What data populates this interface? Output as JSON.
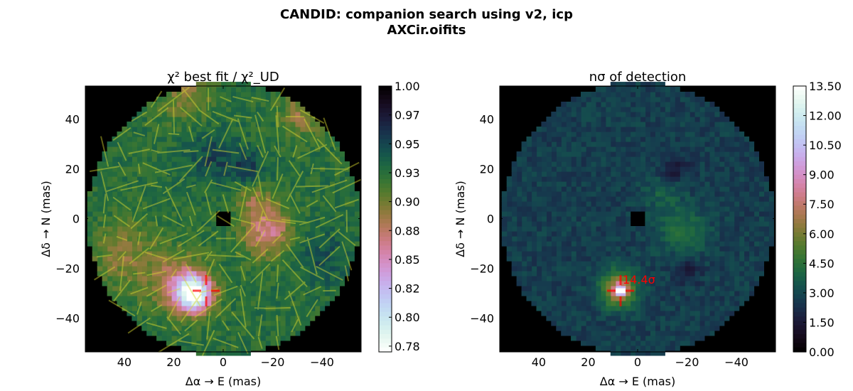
{
  "figure": {
    "title_line1": "CANDID: companion search using v2, icp",
    "title_line2": "AXCir.oifits"
  },
  "chart_data": [
    {
      "type": "heatmap",
      "title": "χ² best fit / χ²_UD",
      "xlabel": "Δα → E (mas)",
      "ylabel": "Δδ → N (mas)",
      "xlim": [
        55.8,
        -55.8
      ],
      "ylim": [
        -53.6,
        53.3
      ],
      "xticks": [
        40,
        20,
        0,
        -20,
        -40
      ],
      "yticks": [
        40,
        20,
        0,
        -20,
        -40
      ],
      "colormap": "cubehelix_r",
      "colorbar_range": [
        0.77,
        1.0
      ],
      "colorbar_ticks": [
        "1.00",
        "0.97",
        "0.95",
        "0.93",
        "0.90",
        "0.88",
        "0.85",
        "0.82",
        "0.80",
        "0.78"
      ],
      "colorbar_tick_values": [
        1.0,
        0.975,
        0.95,
        0.925,
        0.9,
        0.875,
        0.85,
        0.825,
        0.8,
        0.775
      ],
      "field_radius_mas": 55,
      "background_value": 0.925,
      "features": [
        {
          "x": 12,
          "y": -30,
          "sigma": 5,
          "delta": -0.15
        },
        {
          "x": 18,
          "y": -26,
          "sigma": 8,
          "delta": -0.05
        },
        {
          "x": -18,
          "y": -5,
          "sigma": 7,
          "delta": -0.06
        },
        {
          "x": -12,
          "y": 8,
          "sigma": 5,
          "delta": -0.03
        },
        {
          "x": 40,
          "y": -15,
          "sigma": 10,
          "delta": -0.03
        },
        {
          "x": 15,
          "y": 50,
          "sigma": 8,
          "delta": -0.03
        },
        {
          "x": -32,
          "y": 42,
          "sigma": 6,
          "delta": -0.035
        },
        {
          "x": 5,
          "y": 25,
          "sigma": 8,
          "delta": 0.025
        },
        {
          "x": -10,
          "y": 20,
          "sigma": 5,
          "delta": 0.03
        },
        {
          "x": -40,
          "y": -15,
          "sigma": 8,
          "delta": 0.02
        }
      ],
      "marker": {
        "x": 6.9,
        "y": -29
      }
    },
    {
      "type": "heatmap",
      "title": "nσ of detection",
      "xlabel": "Δα → E (mas)",
      "ylabel": "Δδ → N (mas)",
      "xlim": [
        55.8,
        -55.8
      ],
      "ylim": [
        -53.6,
        53.3
      ],
      "xticks": [
        40,
        20,
        0,
        -20,
        -40
      ],
      "yticks": [
        40,
        20,
        0,
        -20,
        -40
      ],
      "colormap": "cubehelix",
      "colorbar_range": [
        0,
        13.5
      ],
      "colorbar_ticks": [
        "13.50",
        "12.00",
        "10.50",
        "9.00",
        "7.50",
        "6.00",
        "4.50",
        "3.00",
        "1.50",
        "0.00"
      ],
      "colorbar_tick_values": [
        13.5,
        12,
        10.5,
        9,
        7.5,
        6,
        4.5,
        3,
        1.5,
        0
      ],
      "field_radius_mas": 55,
      "background_value": 2.7,
      "features": [
        {
          "x": 8,
          "y": -28,
          "sigma": 5,
          "delta": 4.5
        },
        {
          "x": 6.9,
          "y": -29,
          "sigma": 1.8,
          "delta": 5
        },
        {
          "x": -18,
          "y": -5,
          "sigma": 7,
          "delta": 1.5
        },
        {
          "x": -10,
          "y": 10,
          "sigma": 5,
          "delta": 1.0
        },
        {
          "x": -15,
          "y": 20,
          "sigma": 4,
          "delta": -1.2
        },
        {
          "x": -20,
          "y": -20,
          "sigma": 4,
          "delta": -1.0
        }
      ],
      "marker": {
        "x": 6.9,
        "y": -29,
        "label": "14.4σ",
        "peak_value": 14.4
      }
    }
  ],
  "colors": {
    "marker": "#ff0000",
    "lines": "#d8d830"
  }
}
